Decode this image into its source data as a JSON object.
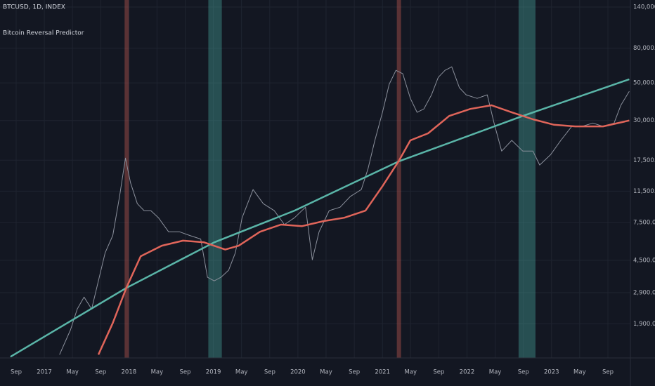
{
  "chart_data": {
    "type": "line",
    "title": "BTCUSD, 1D, INDEX",
    "subtitle": "Bitcoin Reversal Predictor",
    "log_scale": true,
    "grid": true,
    "xlim": [
      2016.476,
      2023.933
    ],
    "ylim": [
      1195,
      154000
    ],
    "xticks": [
      {
        "value": 2016.667,
        "label": "Sep"
      },
      2017,
      {
        "value": 2017.333,
        "label": "May"
      },
      {
        "value": 2017.667,
        "label": "Sep"
      },
      2018,
      {
        "value": 2018.333,
        "label": "May"
      },
      {
        "value": 2018.667,
        "label": "Sep"
      },
      2019,
      {
        "value": 2019.333,
        "label": "May"
      },
      {
        "value": 2019.667,
        "label": "Sep"
      },
      2020,
      {
        "value": 2020.333,
        "label": "May"
      },
      {
        "value": 2020.667,
        "label": "Sep"
      },
      2021,
      {
        "value": 2021.333,
        "label": "May"
      },
      {
        "value": 2021.667,
        "label": "Sep"
      },
      2022,
      {
        "value": 2022.333,
        "label": "May"
      },
      {
        "value": 2022.667,
        "label": "Sep"
      },
      2023,
      {
        "value": 2023.333,
        "label": "May"
      },
      {
        "value": 2023.667,
        "label": "Sep"
      }
    ],
    "yticks": [
      {
        "value": 140000,
        "label": "140,000.00"
      },
      {
        "value": 80000,
        "label": "80,000.00"
      },
      {
        "value": 50000,
        "label": "50,000.00"
      },
      {
        "value": 30000,
        "label": "30,000.00"
      },
      {
        "value": 17500,
        "label": "17,500.00"
      },
      {
        "value": 11500,
        "label": "11,500.00"
      },
      {
        "value": 7500,
        "label": "7,500.00"
      },
      {
        "value": 4500,
        "label": "4,500.00"
      },
      {
        "value": 2900,
        "label": "2,900.00"
      },
      {
        "value": 1900,
        "label": "1,900.00"
      }
    ],
    "bands": [
      {
        "x": [
          2017.95,
          2018.0
        ],
        "color": "#e0655a"
      },
      {
        "x": [
          2018.94,
          2019.1
        ],
        "color": "#4db6ac"
      },
      {
        "x": [
          2021.17,
          2021.22
        ],
        "color": "#e0655a"
      },
      {
        "x": [
          2022.61,
          2022.81
        ],
        "color": "#4db6ac"
      }
    ],
    "series": [
      {
        "color": "#8b909c",
        "width": 1,
        "x": [
          2017.18,
          2017.31,
          2017.39,
          2017.47,
          2017.56,
          2017.64,
          2017.72,
          2017.81,
          2017.89,
          2017.96,
          2018.02,
          2018.1,
          2018.18,
          2018.26,
          2018.35,
          2018.47,
          2018.6,
          2018.72,
          2018.85,
          2018.93,
          2019.01,
          2019.09,
          2019.18,
          2019.26,
          2019.34,
          2019.47,
          2019.59,
          2019.72,
          2019.84,
          2019.96,
          2020.09,
          2020.17,
          2020.25,
          2020.37,
          2020.5,
          2020.62,
          2020.75,
          2020.83,
          2020.91,
          2021.0,
          2021.08,
          2021.16,
          2021.24,
          2021.33,
          2021.41,
          2021.49,
          2021.58,
          2021.66,
          2021.74,
          2021.82,
          2021.91,
          2021.99,
          2022.12,
          2022.24,
          2022.32,
          2022.41,
          2022.53,
          2022.66,
          2022.78,
          2022.86,
          2022.99,
          2023.11,
          2023.24,
          2023.36,
          2023.49,
          2023.61,
          2023.74,
          2023.82,
          2023.92
        ],
        "values": [
          1250,
          1750,
          2320,
          2730,
          2320,
          3400,
          4980,
          6300,
          10700,
          18000,
          12900,
          9700,
          8830,
          8830,
          8020,
          6620,
          6620,
          6300,
          6000,
          3570,
          3400,
          3570,
          3930,
          4980,
          8020,
          11750,
          9700,
          8830,
          7300,
          8020,
          9250,
          4530,
          6620,
          8830,
          9250,
          10700,
          11750,
          15600,
          22900,
          33500,
          49100,
          59300,
          56600,
          40500,
          33500,
          35100,
          42500,
          53900,
          59300,
          62200,
          46800,
          42500,
          40500,
          42500,
          29000,
          19800,
          22900,
          19800,
          19800,
          16400,
          18900,
          22900,
          27700,
          27700,
          29000,
          27700,
          29000,
          36900,
          44600
        ]
      },
      {
        "color": "#5ab5a8",
        "width": 2.5,
        "x": [
          2016.6,
          2017.97,
          2019.01,
          2019.96,
          2021.19,
          2022.66,
          2023.92
        ],
        "values": [
          1215,
          3090,
          5740,
          8830,
          17200,
          31900,
          52500
        ]
      },
      {
        "color": "#e0655a",
        "width": 2.5,
        "x": [
          2017.64,
          2017.81,
          2017.97,
          2018.14,
          2018.39,
          2018.64,
          2018.89,
          2019.14,
          2019.3,
          2019.55,
          2019.8,
          2020.05,
          2020.3,
          2020.55,
          2020.8,
          2021.0,
          2021.19,
          2021.33,
          2021.54,
          2021.79,
          2022.04,
          2022.29,
          2022.53,
          2022.78,
          2023.03,
          2023.28,
          2023.61,
          2023.92
        ],
        "values": [
          1250,
          1920,
          3090,
          4750,
          5480,
          5870,
          5740,
          5200,
          5480,
          6620,
          7300,
          7150,
          7650,
          8020,
          8830,
          12300,
          17200,
          22900,
          25200,
          31900,
          35100,
          36900,
          33500,
          30500,
          28300,
          27700,
          27700,
          30000
        ]
      }
    ]
  }
}
